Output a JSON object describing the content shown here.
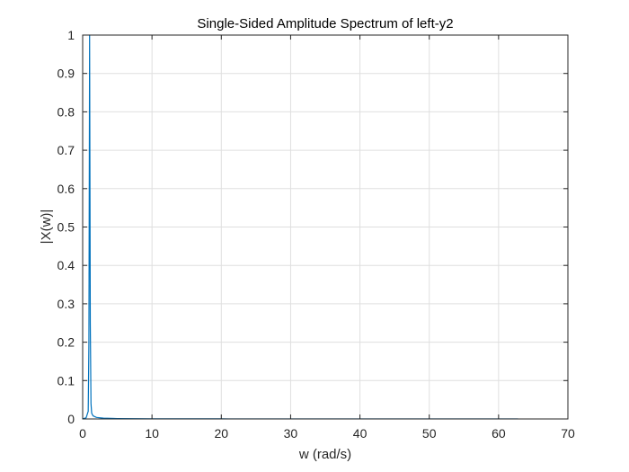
{
  "chart_data": {
    "type": "line",
    "title": "Single-Sided Amplitude Spectrum of left-y2",
    "xlabel": "w (rad/s)",
    "ylabel": "|X(w)|",
    "xlim": [
      0,
      70
    ],
    "ylim": [
      0,
      1
    ],
    "xticks": [
      0,
      10,
      20,
      30,
      40,
      50,
      60,
      70
    ],
    "yticks": [
      0,
      0.1,
      0.2,
      0.3,
      0.4,
      0.5,
      0.6,
      0.7,
      0.8,
      0.9,
      1
    ],
    "grid": true,
    "line_color": "#0072BD",
    "series": [
      {
        "x": [
          0,
          0.5,
          0.8,
          0.9,
          1.0,
          1.1,
          1.2,
          1.3,
          1.5,
          2.0,
          3.0,
          5.0,
          10,
          20,
          30,
          40,
          50,
          60,
          62.8
        ],
        "y": [
          0,
          0.003,
          0.02,
          0.2,
          1.0,
          0.25,
          0.04,
          0.015,
          0.008,
          0.004,
          0.002,
          0.001,
          0.0005,
          0.0002,
          0.0001,
          0.0001,
          0.0001,
          0.0001,
          0.0001
        ]
      }
    ]
  }
}
